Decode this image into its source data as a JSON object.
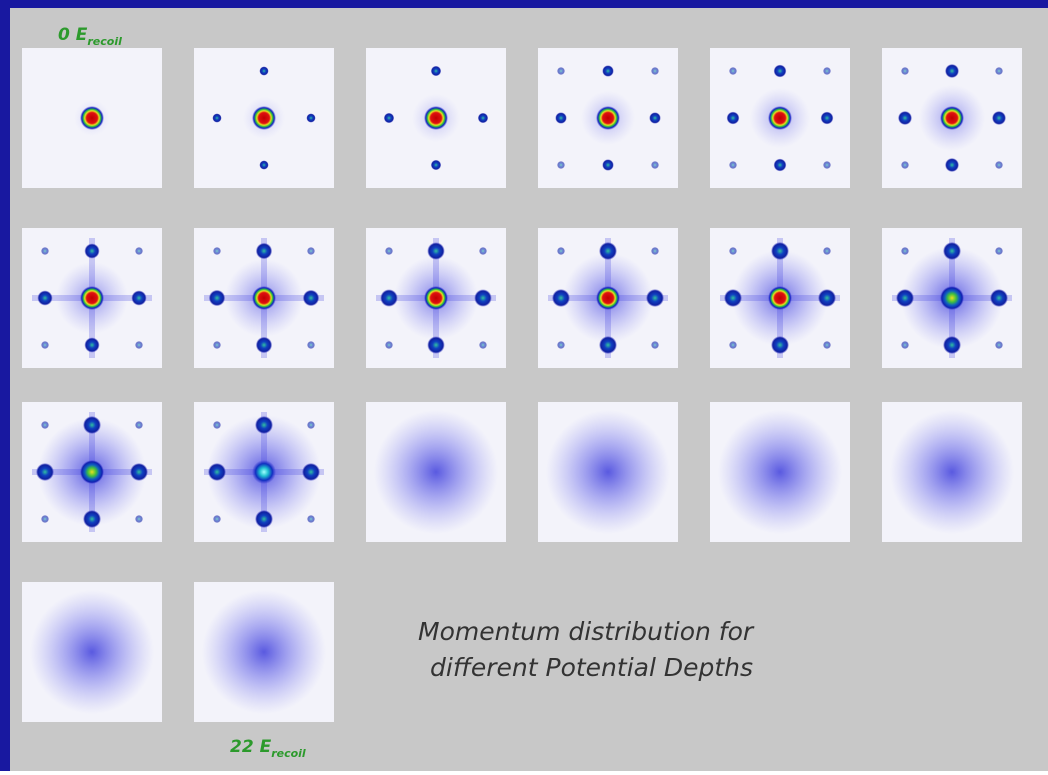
{
  "start_label": {
    "text": "0 E",
    "subscript": "recoil"
  },
  "end_label": {
    "text": "22 E",
    "subscript": "recoil"
  },
  "caption": [
    "Momentum distribution for",
    "different Potential Depths"
  ]
}
